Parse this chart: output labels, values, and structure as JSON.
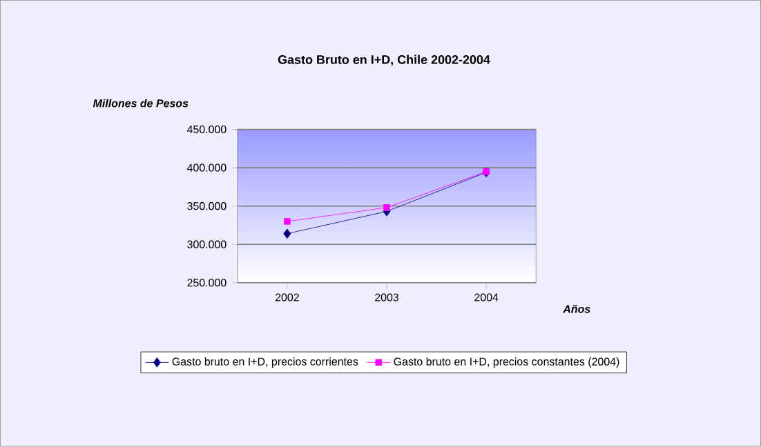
{
  "chart_data": {
    "type": "line",
    "title": "Gasto Bruto en I+D, Chile 2002-2004",
    "ylabel": "Millones de Pesos",
    "xlabel": "Años",
    "categories": [
      "2002",
      "2003",
      "2004"
    ],
    "series": [
      {
        "name": "Gasto bruto en I+D, precios corrientes",
        "color": "#000080",
        "marker": "diamond",
        "values": [
          314000,
          343000,
          394000
        ]
      },
      {
        "name": "Gasto bruto en I+D, precios constantes (2004)",
        "color": "#ff00ff",
        "marker": "square",
        "values": [
          330000,
          348000,
          395000
        ]
      }
    ],
    "ylim": [
      250000,
      450000
    ],
    "yticks": [
      {
        "value": 250000,
        "label": "250.000"
      },
      {
        "value": 300000,
        "label": "300.000"
      },
      {
        "value": 350000,
        "label": "350.000"
      },
      {
        "value": 400000,
        "label": "400.000"
      },
      {
        "value": 450000,
        "label": "450.000"
      }
    ],
    "grid": "y",
    "legend": "bottom",
    "line_style": "solid"
  }
}
